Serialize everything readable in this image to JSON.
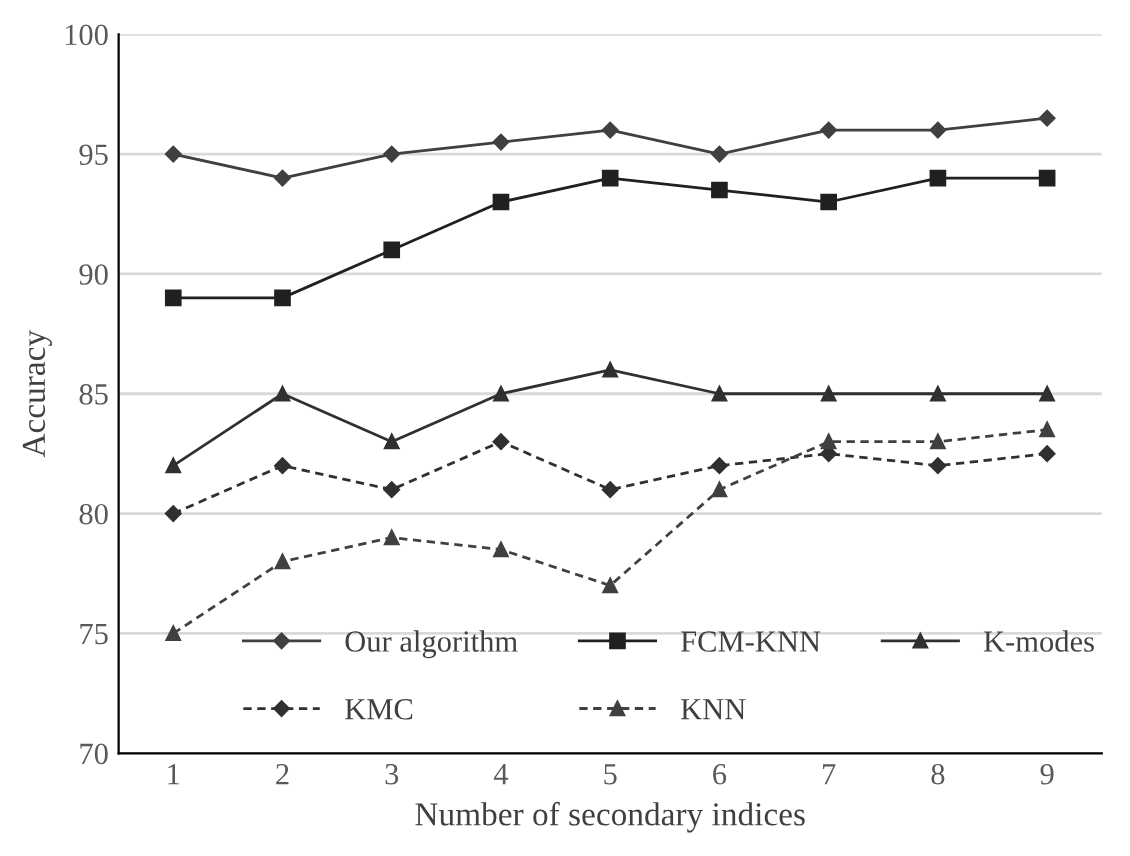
{
  "chart_data": {
    "type": "line",
    "xlabel": "Number of secondary indices",
    "ylabel": "Accuracy",
    "categories": [
      "1",
      "2",
      "3",
      "4",
      "5",
      "6",
      "7",
      "8",
      "9"
    ],
    "ylim": [
      70,
      100
    ],
    "yticks": [
      70,
      75,
      80,
      85,
      90,
      95,
      100
    ],
    "grid": "y",
    "legend": "bottom",
    "series": [
      {
        "name": "Our algorithm",
        "color": "#404040",
        "marker": "diamond",
        "line_style": "solid",
        "values": [
          95,
          94,
          95,
          95.5,
          96,
          95,
          96,
          96,
          96.5
        ]
      },
      {
        "name": "FCM-KNN",
        "color": "#202020",
        "marker": "square",
        "line_style": "solid",
        "values": [
          89,
          89,
          91,
          93,
          94,
          93.5,
          93,
          94,
          94
        ]
      },
      {
        "name": "K-modes",
        "color": "#303030",
        "marker": "triangle",
        "line_style": "solid",
        "values": [
          82,
          85,
          83,
          85,
          86,
          85,
          85,
          85,
          85
        ]
      },
      {
        "name": "KMC",
        "color": "#303030",
        "marker": "diamond",
        "line_style": "dashed",
        "values": [
          80,
          82,
          81,
          83,
          81,
          82,
          82.5,
          82,
          82.5
        ]
      },
      {
        "name": "KNN",
        "color": "#404040",
        "marker": "triangle",
        "line_style": "dashed",
        "values": [
          75,
          78,
          79,
          78.5,
          77,
          81,
          83,
          83,
          83.5
        ]
      }
    ]
  }
}
